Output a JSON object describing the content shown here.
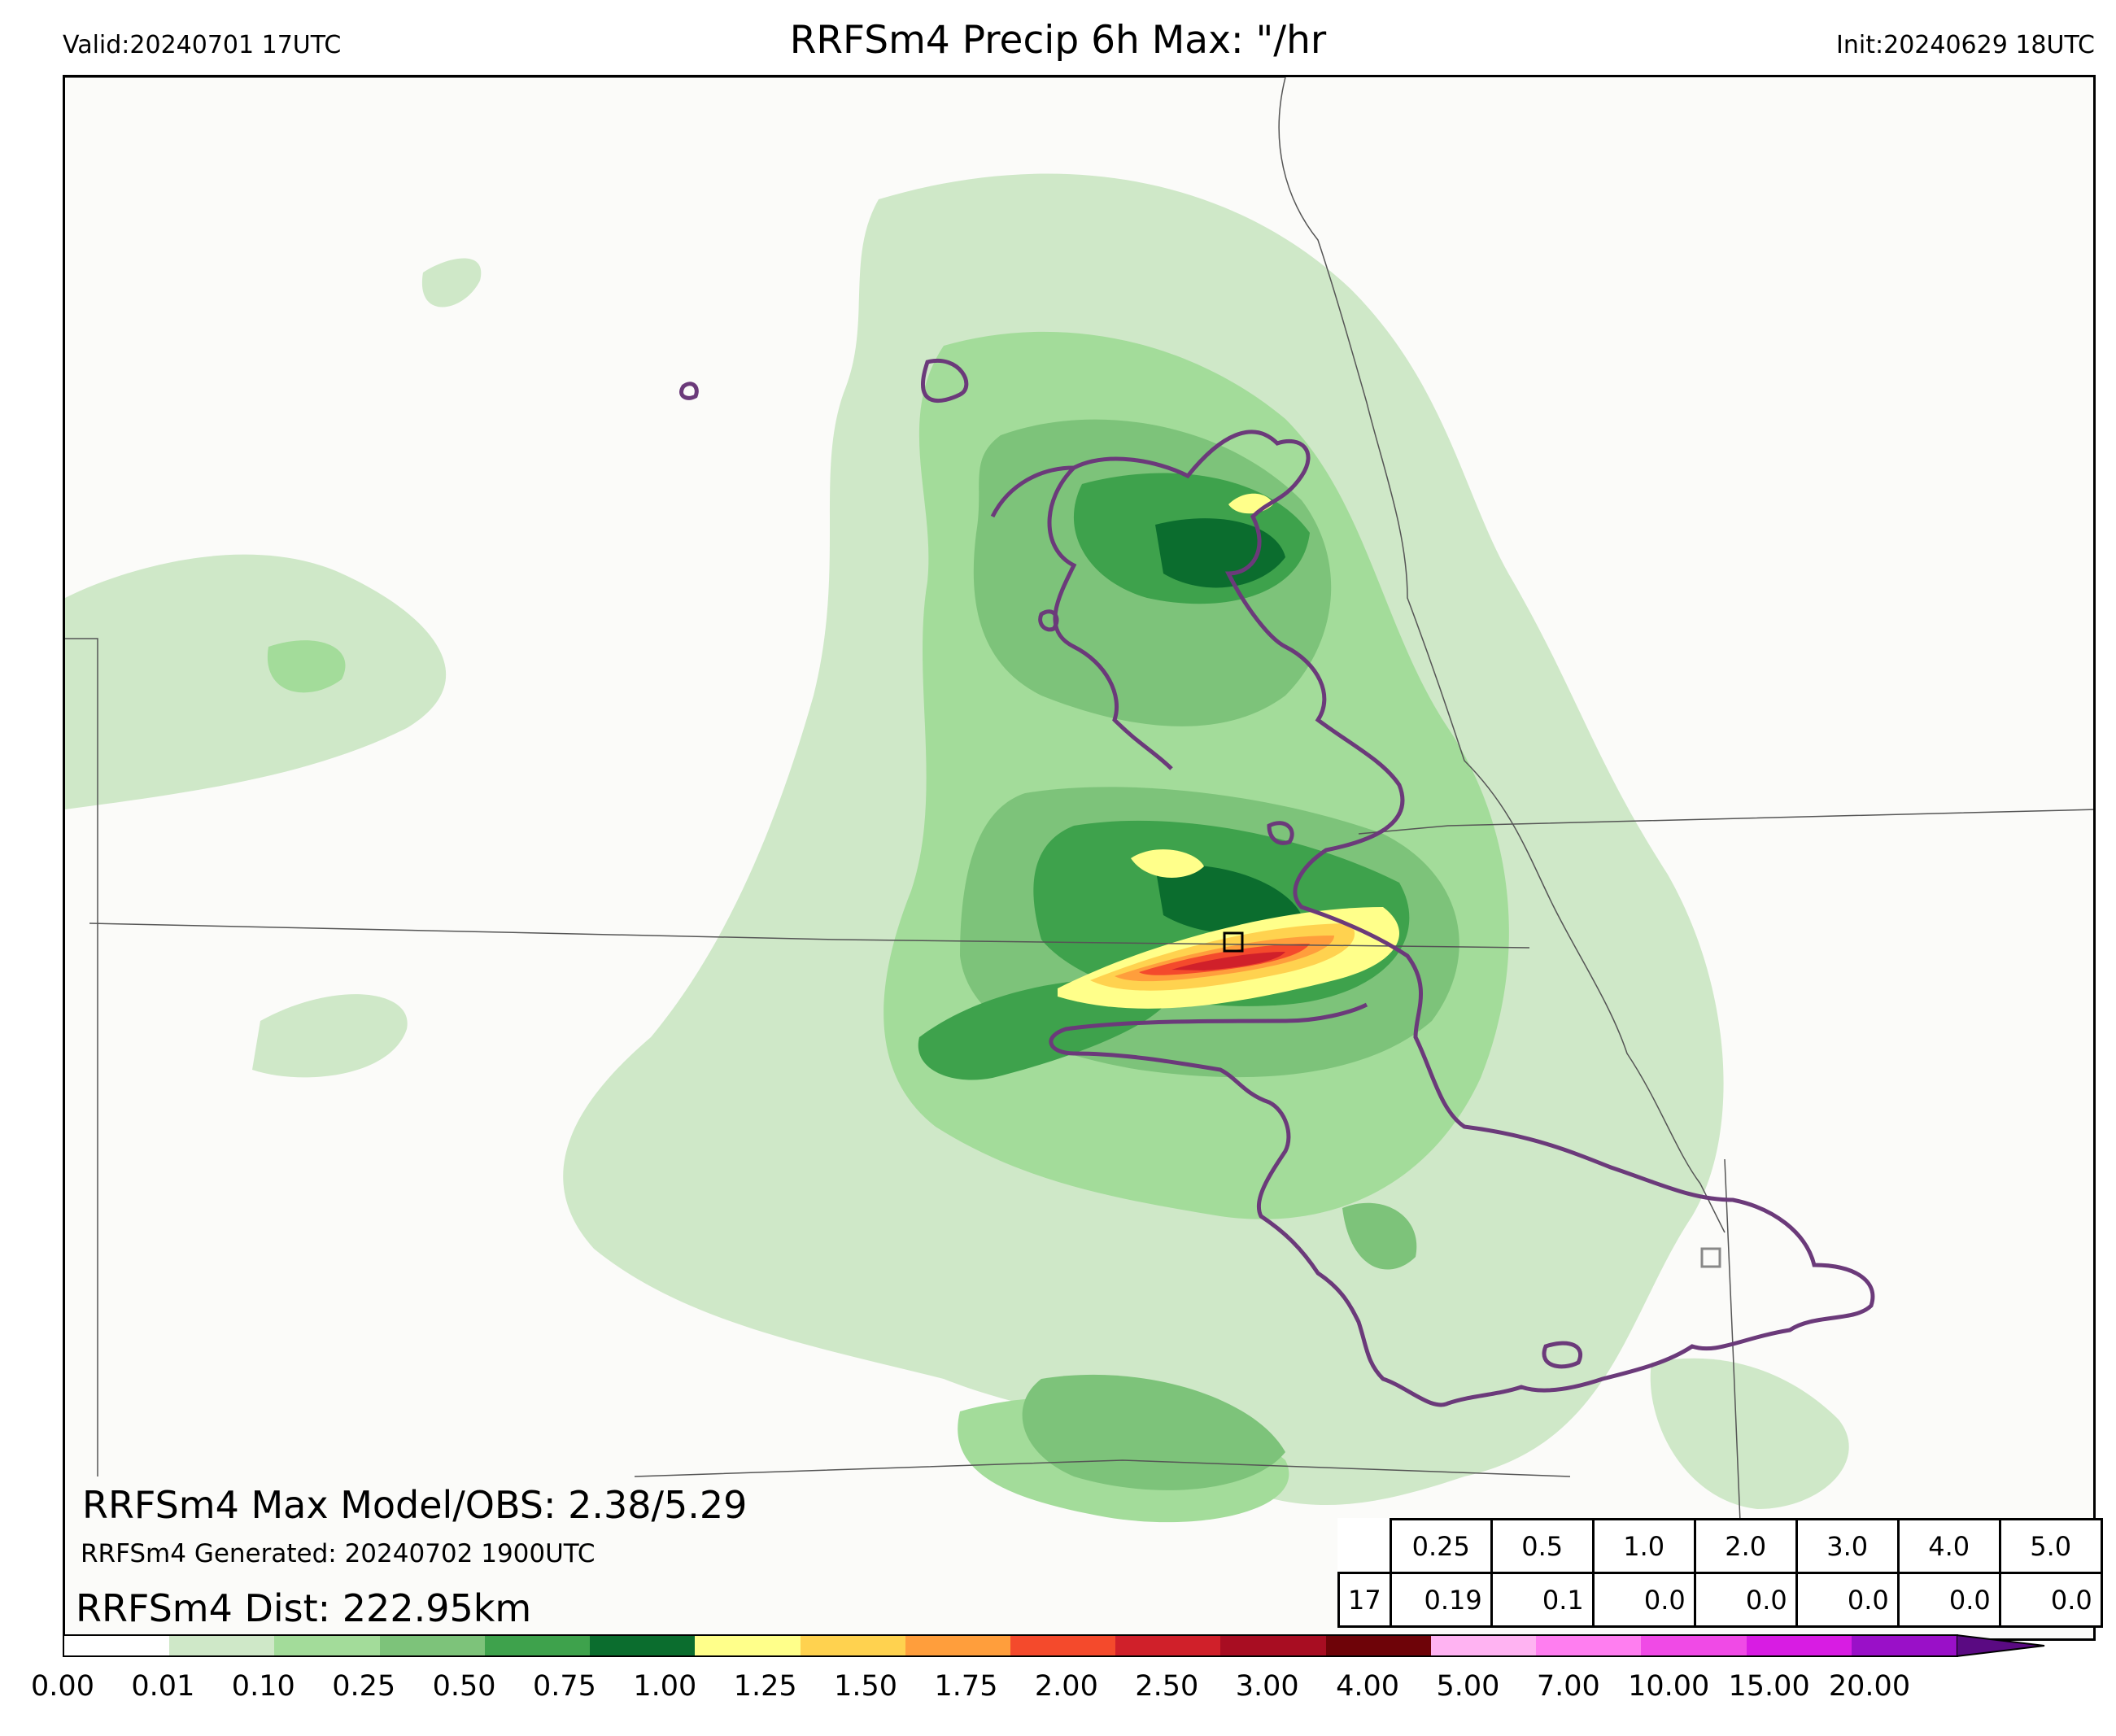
{
  "header": {
    "valid": "Valid:20240701 17UTC",
    "title": "RRFSm4 Precip 6h Max: \"/hr",
    "init": "Init:20240629 18UTC"
  },
  "stats": {
    "max_line": "RRFSm4 Max Model/OBS: 2.38/5.29",
    "generated_line": "RRFSm4 Generated: 20240702 1900UTC",
    "dist_line": "RRFSm4 Dist: 222.95km"
  },
  "threshold_table": {
    "thresholds": [
      "0.25",
      "0.5",
      "1.0",
      "2.0",
      "3.0",
      "4.0",
      "5.0"
    ],
    "row_label": "17",
    "values": [
      "0.19",
      "0.1",
      "0.0",
      "0.0",
      "0.0",
      "0.0",
      "0.0"
    ]
  },
  "colorbar": {
    "ticks": [
      "0.00",
      "0.01",
      "0.10",
      "0.25",
      "0.50",
      "0.75",
      "1.00",
      "1.25",
      "1.50",
      "1.75",
      "2.00",
      "2.50",
      "3.00",
      "4.00",
      "5.00",
      "7.00",
      "10.00",
      "15.00",
      "20.00"
    ],
    "colors": [
      "#ffffff",
      "#cfe8c8",
      "#a3dc9a",
      "#7dc37a",
      "#3ea24c",
      "#0b6d2e",
      "#ffff8a",
      "#ffd24f",
      "#ff9e3c",
      "#f44a2c",
      "#d0202a",
      "#a80d22",
      "#6e0308",
      "#ffb3f2",
      "#ff7ef0",
      "#f04ae6",
      "#d81ce3",
      "#9a10c8"
    ],
    "arrow_color": "#5a0a82"
  },
  "map": {
    "background": "#fbfbf9",
    "border_color": "#555555",
    "obs_contour_color": "#6b3a7a",
    "marker_max_model": "square-marker-black",
    "marker_obs": "square-marker-gray"
  }
}
